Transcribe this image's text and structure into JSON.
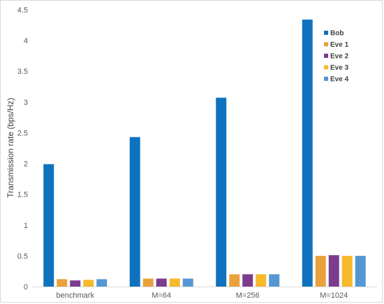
{
  "chart_data": {
    "type": "bar",
    "title": "",
    "xlabel": "",
    "ylabel": "Transmission rate (bps/Hz)",
    "categories": [
      "benchmark",
      "M=64",
      "M=256",
      "M=1024"
    ],
    "ylim": [
      0,
      4.5
    ],
    "yticks": [
      "0",
      "0.5",
      "1",
      "1.5",
      "2",
      "2.5",
      "3",
      "3.5",
      "4",
      "4.5"
    ],
    "grid": false,
    "legend_position": "top-right",
    "series": [
      {
        "name": "Bob",
        "color": "#0f72be",
        "values": [
          1.99,
          2.43,
          3.07,
          4.34
        ]
      },
      {
        "name": "Eve 1",
        "color": "#e9a23b",
        "values": [
          0.12,
          0.13,
          0.2,
          0.5
        ]
      },
      {
        "name": "Eve 2",
        "color": "#7d3b8e",
        "values": [
          0.1,
          0.13,
          0.2,
          0.51
        ]
      },
      {
        "name": "Eve 3",
        "color": "#f7b92d",
        "values": [
          0.11,
          0.13,
          0.2,
          0.5
        ]
      },
      {
        "name": "Eve 4",
        "color": "#5597d3",
        "values": [
          0.12,
          0.13,
          0.2,
          0.5
        ]
      }
    ]
  }
}
